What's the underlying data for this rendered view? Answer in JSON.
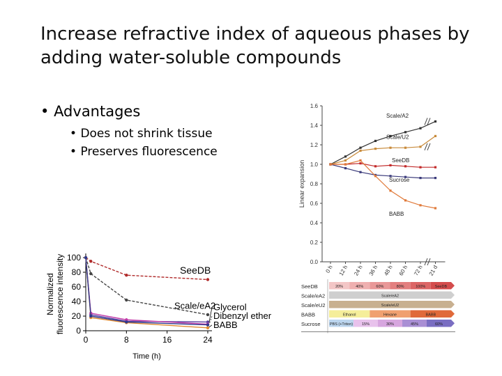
{
  "slide": {
    "title": "Increase refractive index of aqueous phases by adding water-soluble compounds",
    "bullet": "Advantages",
    "subbullets": [
      "Does not shrink tissue",
      "Preserves fluorescence"
    ]
  },
  "chart_data": [
    {
      "type": "line",
      "title": "",
      "xlabel": "Time (h)",
      "ylabel": "Normalized fluorescence intensity",
      "x": [
        0,
        8,
        16,
        24
      ],
      "xticks": [
        "0",
        "8",
        "16",
        "24"
      ],
      "yticks": [
        "0",
        "20",
        "40",
        "60",
        "80",
        "100"
      ],
      "ylim": [
        0,
        100
      ],
      "series": [
        {
          "name": "SeeDB",
          "color": "#b02a2a",
          "points": [
            [
              0,
              100
            ],
            [
              1,
              95
            ],
            [
              8,
              76
            ],
            [
              24,
              70
            ]
          ]
        },
        {
          "name": "Scale/eA2",
          "color": "#444444",
          "points": [
            [
              0,
              100
            ],
            [
              1,
              78
            ],
            [
              8,
              42
            ],
            [
              24,
              22
            ]
          ]
        },
        {
          "name": "Glycerol",
          "color": "#5a3fa0",
          "points": [
            [
              0,
              100
            ],
            [
              1,
              22
            ],
            [
              8,
              13
            ],
            [
              24,
              12
            ]
          ]
        },
        {
          "name": "Dibenzyl ether",
          "color": "#c23aa8",
          "points": [
            [
              0,
              100
            ],
            [
              1,
              24
            ],
            [
              8,
              15
            ],
            [
              24,
              9
            ]
          ]
        },
        {
          "name": "BABB",
          "color": "#e08a30",
          "points": [
            [
              0,
              100
            ],
            [
              1,
              18
            ],
            [
              8,
              11
            ],
            [
              24,
              4
            ]
          ]
        },
        {
          "name": "",
          "color": "#2d3a8c",
          "points": [
            [
              0,
              100
            ],
            [
              1,
              20
            ],
            [
              8,
              12
            ],
            [
              24,
              8
            ]
          ]
        }
      ]
    },
    {
      "type": "line",
      "title": "",
      "ylabel": "Linear expansion",
      "xticks": [
        "0 h",
        "12 h",
        "24 h",
        "36 h",
        "48 h",
        "60 h",
        "72 h",
        "21 d"
      ],
      "yticks": [
        "0.0",
        "0.2",
        "0.4",
        "0.6",
        "0.8",
        "1.0",
        "1.2",
        "1.4",
        "1.6"
      ],
      "ylim": [
        0,
        1.6
      ],
      "series": [
        {
          "name": "Scale/A2",
          "color": "#333333",
          "values": [
            1.0,
            1.08,
            1.17,
            1.24,
            1.29,
            1.33,
            1.37,
            1.44
          ]
        },
        {
          "name": "Scale/U2",
          "color": "#c88a3a",
          "values": [
            1.0,
            1.04,
            1.14,
            1.16,
            1.17,
            1.17,
            1.18,
            1.29
          ]
        },
        {
          "name": "SeeDB",
          "color": "#c22a2a",
          "values": [
            1.0,
            1.0,
            1.01,
            0.98,
            0.99,
            0.98,
            0.97,
            0.97
          ]
        },
        {
          "name": "Sucrose",
          "color": "#3a3a7a",
          "values": [
            1.0,
            0.96,
            0.92,
            0.89,
            0.88,
            0.87,
            0.86,
            0.86
          ]
        },
        {
          "name": "BABB",
          "color": "#e07a3a",
          "values": [
            1.0,
            1.0,
            1.04,
            0.88,
            0.73,
            0.63,
            0.58,
            0.55
          ]
        }
      ],
      "protocol_table": [
        {
          "label": "SeeDB",
          "cells": [
            [
              "20%",
              "#f3c6c6"
            ],
            [
              "40%",
              "#efb0b0"
            ],
            [
              "60%",
              "#e99898"
            ],
            [
              "80%",
              "#e37f7f"
            ],
            [
              "100%",
              "#dc6565"
            ],
            [
              "SeeDB",
              "#d44d4d"
            ]
          ]
        },
        {
          "label": "Scale/eA2",
          "cells": [
            [
              "Scale/eA2",
              "#cfcfcf"
            ]
          ]
        },
        {
          "label": "Scale/eU2",
          "cells": [
            [
              "Scale/eU2",
              "#c8b090"
            ]
          ]
        },
        {
          "label": "BABB",
          "cells": [
            [
              "Ethanol",
              "#f5ee9a"
            ],
            [
              "Hexane",
              "#f0a070"
            ],
            [
              "BABB",
              "#e06a3a"
            ]
          ]
        },
        {
          "label": "Sucrose",
          "cells": [
            [
              "PBS (+Triton)",
              "#bcd6ef"
            ],
            [
              "15%",
              "#e8c2ec"
            ],
            [
              "30%",
              "#d7a6df"
            ],
            [
              "45%",
              "#a98fd4"
            ],
            [
              "60%",
              "#7a6ec2"
            ]
          ]
        }
      ]
    }
  ]
}
